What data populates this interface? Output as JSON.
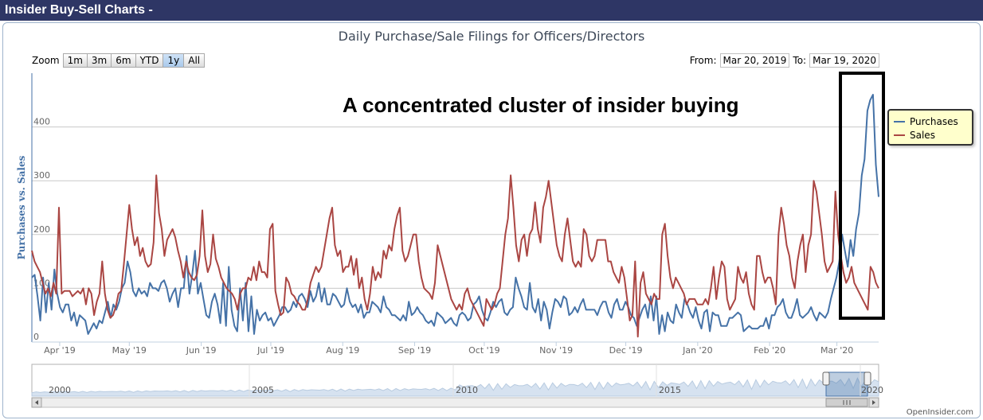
{
  "header": {
    "title": "Insider Buy-Sell Charts -"
  },
  "chart_data": {
    "type": "line",
    "title": "Daily Purchase/Sale Filings for Officers/Directors",
    "ylabel": "Purchases vs. Sales",
    "xlabel": "",
    "ylim": [
      0,
      500
    ],
    "yticks": [
      0,
      100,
      200,
      300,
      400
    ],
    "x_range": [
      "2019-03-20",
      "2020-03-19"
    ],
    "x_tick_labels": [
      "Apr '19",
      "May '19",
      "Jun '19",
      "Jul '19",
      "Aug '19",
      "Sep '19",
      "Oct '19",
      "Nov '19",
      "Dec '19",
      "Jan '20",
      "Feb '20",
      "Mar '20"
    ],
    "grid": true,
    "legend_placement": "right",
    "series": [
      {
        "name": "Purchases",
        "color": "#4572a7",
        "values": [
          120,
          125,
          85,
          40,
          120,
          55,
          110,
          60,
          135,
          90,
          65,
          55,
          70,
          70,
          40,
          55,
          30,
          50,
          45,
          40,
          15,
          25,
          35,
          25,
          40,
          35,
          55,
          75,
          45,
          70,
          60,
          75,
          100,
          110,
          150,
          130,
          95,
          85,
          100,
          90,
          95,
          85,
          110,
          100,
          100,
          95,
          110,
          115,
          100,
          75,
          90,
          100,
          65,
          100,
          100,
          160,
          90,
          125,
          170,
          90,
          110,
          80,
          50,
          45,
          75,
          90,
          70,
          35,
          110,
          30,
          140,
          60,
          30,
          20,
          100,
          40,
          110,
          20,
          85,
          15,
          60,
          40,
          50,
          55,
          40,
          45,
          30,
          40,
          50,
          65,
          65,
          55,
          60,
          75,
          65,
          85,
          90,
          80,
          65,
          95,
          75,
          85,
          110,
          75,
          100,
          70,
          70,
          90,
          85,
          75,
          65,
          70,
          100,
          75,
          65,
          70,
          55,
          70,
          45,
          55,
          55,
          75,
          70,
          65,
          55,
          85,
          65,
          60,
          50,
          50,
          45,
          40,
          50,
          40,
          75,
          50,
          55,
          65,
          55,
          50,
          40,
          35,
          40,
          30,
          55,
          50,
          45,
          35,
          40,
          45,
          35,
          30,
          50,
          55,
          50,
          40,
          45,
          70,
          75,
          85,
          60,
          45,
          40,
          55,
          75,
          65,
          75,
          80,
          55,
          50,
          60,
          65,
          120,
          100,
          85,
          65,
          60,
          110,
          65,
          55,
          80,
          40,
          75,
          60,
          25,
          55,
          80,
          75,
          65,
          85,
          80,
          50,
          55,
          65,
          55,
          70,
          80,
          60,
          60,
          60,
          60,
          50,
          65,
          75,
          75,
          55,
          45,
          70,
          80,
          60,
          60,
          75,
          65,
          50,
          45,
          30,
          45,
          60,
          70,
          45,
          85,
          40,
          85,
          15,
          50,
          20,
          55,
          40,
          35,
          70,
          55,
          45,
          80,
          70,
          55,
          45,
          65,
          40,
          25,
          55,
          60,
          20,
          55,
          50,
          50,
          30,
          30,
          30,
          45,
          45,
          50,
          55,
          50,
          20,
          25,
          30,
          25,
          25,
          25,
          30,
          30,
          45,
          25,
          50,
          50,
          65,
          70,
          80,
          55,
          45,
          45,
          60,
          80,
          50,
          45,
          50,
          55,
          65,
          50,
          40,
          55,
          50,
          45,
          55,
          80,
          100,
          120,
          150,
          200,
          170,
          140,
          190,
          160,
          210,
          240,
          310,
          340,
          430,
          450,
          460,
          330,
          270
        ]
      },
      {
        "name": "Sales",
        "color": "#aa4643",
        "values": [
          170,
          150,
          140,
          130,
          110,
          90,
          100,
          85,
          110,
          90,
          250,
          90,
          95,
          95,
          95,
          85,
          90,
          95,
          90,
          100,
          70,
          100,
          90,
          50,
          75,
          90,
          150,
          90,
          60,
          45,
          50,
          65,
          90,
          95,
          145,
          200,
          255,
          210,
          180,
          195,
          160,
          175,
          150,
          140,
          145,
          185,
          310,
          240,
          210,
          160,
          190,
          200,
          210,
          195,
          170,
          150,
          120,
          150,
          130,
          120,
          115,
          125,
          160,
          245,
          160,
          130,
          145,
          200,
          155,
          140,
          120,
          110,
          100,
          95,
          90,
          80,
          60,
          90,
          100,
          100,
          120,
          115,
          140,
          115,
          150,
          130,
          130,
          120,
          210,
          220,
          95,
          70,
          50,
          55,
          120,
          110,
          90,
          85,
          75,
          70,
          60,
          60,
          80,
          110,
          125,
          140,
          130,
          140,
          170,
          200,
          230,
          250,
          180,
          160,
          170,
          130,
          140,
          140,
          160,
          125,
          155,
          100,
          120,
          80,
          60,
          90,
          140,
          115,
          130,
          120,
          170,
          155,
          180,
          170,
          210,
          235,
          250,
          170,
          150,
          160,
          180,
          200,
          200,
          150,
          120,
          100,
          95,
          90,
          80,
          110,
          180,
          160,
          140,
          120,
          100,
          80,
          70,
          60,
          70,
          60,
          90,
          100,
          80,
          70,
          60,
          50,
          40,
          30,
          80,
          70,
          60,
          70,
          90,
          100,
          150,
          200,
          230,
          310,
          250,
          180,
          150,
          190,
          200,
          160,
          200,
          210,
          260,
          210,
          185,
          250,
          270,
          300,
          260,
          220,
          180,
          160,
          150,
          200,
          230,
          190,
          150,
          140,
          150,
          140,
          210,
          200,
          160,
          150,
          160,
          190,
          190,
          190,
          190,
          150,
          150,
          130,
          120,
          110,
          140,
          120,
          80,
          40,
          50,
          150,
          10,
          110,
          130,
          90,
          80,
          70,
          90,
          80,
          80,
          200,
          220,
          160,
          120,
          100,
          120,
          110,
          100,
          90,
          70,
          80,
          80,
          80,
          70,
          70,
          70,
          80,
          70,
          100,
          140,
          80,
          120,
          150,
          140,
          80,
          60,
          70,
          80,
          140,
          120,
          110,
          130,
          90,
          70,
          60,
          160,
          160,
          130,
          110,
          120,
          120,
          100,
          70,
          200,
          250,
          220,
          180,
          160,
          120,
          100,
          150,
          180,
          200,
          130,
          180,
          200,
          300,
          280,
          240,
          200,
          150,
          130,
          140,
          150,
          280,
          200,
          160,
          130,
          110,
          120,
          140,
          110,
          100,
          90,
          80,
          70,
          60,
          140,
          130,
          110,
          100
        ]
      }
    ]
  },
  "zoom": {
    "label": "Zoom",
    "buttons": [
      "1m",
      "3m",
      "6m",
      "YTD",
      "1y",
      "All"
    ],
    "active": "1y"
  },
  "range": {
    "from_label": "From:",
    "from_value": "Mar 20, 2019",
    "to_label": "To:",
    "to_value": "Mar 19, 2020"
  },
  "navigator": {
    "year_labels": [
      "2000",
      "2005",
      "2010",
      "2015",
      "2020"
    ]
  },
  "annotation": {
    "text": "A concentrated cluster of insider buying"
  },
  "credit": "OpenInsider.com"
}
